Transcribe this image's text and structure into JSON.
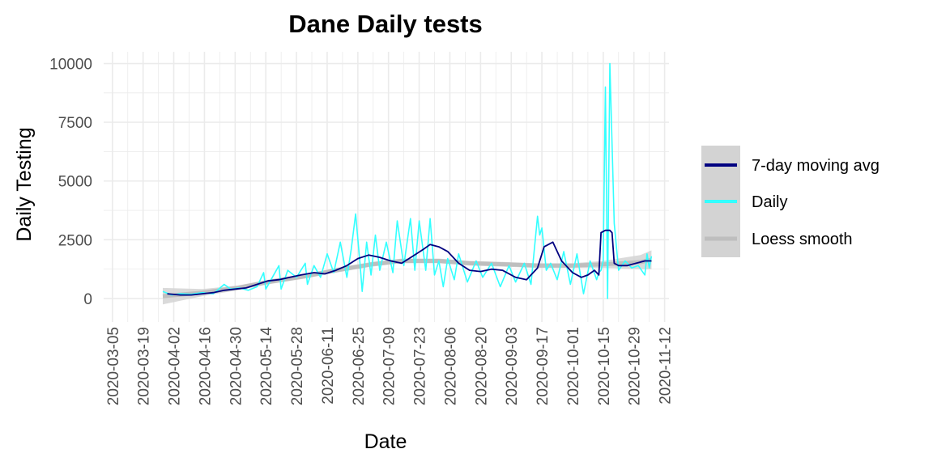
{
  "chart_data": {
    "type": "line",
    "title": "Dane Daily tests",
    "xlabel": "Date",
    "ylabel": "Daily Testing",
    "x_range": [
      "2020-03-01",
      "2020-11-14"
    ],
    "ylim": [
      -1000,
      10500
    ],
    "x_ticks": [
      "2020-03-05",
      "2020-03-19",
      "2020-04-02",
      "2020-04-16",
      "2020-04-30",
      "2020-05-14",
      "2020-05-28",
      "2020-06-11",
      "2020-06-25",
      "2020-07-09",
      "2020-07-23",
      "2020-08-06",
      "2020-08-20",
      "2020-09-03",
      "2020-09-17",
      "2020-10-01",
      "2020-10-15",
      "2020-10-29",
      "2020-11-12"
    ],
    "y_ticks": [
      0,
      2500,
      5000,
      7500,
      10000
    ],
    "y_tick_labels": [
      "0",
      "2500",
      "5000",
      "7500",
      "10000"
    ],
    "grid": true,
    "legend_position": "right",
    "legend": [
      "7-day moving avg",
      "Daily",
      "Loess smooth"
    ],
    "colors": {
      "moving_avg": "#000080",
      "daily": "#33ffff",
      "loess": "#bebebe",
      "loess_band": "#d3d3d3",
      "grid": "#ebebeb"
    },
    "series": [
      {
        "name": "Daily",
        "x": [
          "2020-03-28",
          "2020-04-01",
          "2020-04-05",
          "2020-04-10",
          "2020-04-15",
          "2020-04-20",
          "2020-04-25",
          "2020-04-28",
          "2020-05-02",
          "2020-05-06",
          "2020-05-10",
          "2020-05-13",
          "2020-05-14",
          "2020-05-17",
          "2020-05-20",
          "2020-05-21",
          "2020-05-24",
          "2020-05-28",
          "2020-06-01",
          "2020-06-02",
          "2020-06-05",
          "2020-06-08",
          "2020-06-11",
          "2020-06-14",
          "2020-06-17",
          "2020-06-20",
          "2020-06-22",
          "2020-06-24",
          "2020-06-26",
          "2020-06-27",
          "2020-06-29",
          "2020-07-01",
          "2020-07-03",
          "2020-07-05",
          "2020-07-08",
          "2020-07-11",
          "2020-07-13",
          "2020-07-16",
          "2020-07-19",
          "2020-07-21",
          "2020-07-23",
          "2020-07-26",
          "2020-07-28",
          "2020-07-30",
          "2020-08-01",
          "2020-08-03",
          "2020-08-05",
          "2020-08-08",
          "2020-08-10",
          "2020-08-14",
          "2020-08-18",
          "2020-08-21",
          "2020-08-25",
          "2020-08-29",
          "2020-09-02",
          "2020-09-05",
          "2020-09-09",
          "2020-09-12",
          "2020-09-15",
          "2020-09-16",
          "2020-09-17",
          "2020-09-19",
          "2020-09-21",
          "2020-09-24",
          "2020-09-27",
          "2020-09-30",
          "2020-10-03",
          "2020-10-06",
          "2020-10-09",
          "2020-10-12",
          "2020-10-13",
          "2020-10-14",
          "2020-10-15",
          "2020-10-16",
          "2020-10-17",
          "2020-10-18",
          "2020-10-20",
          "2020-10-22",
          "2020-10-25",
          "2020-10-28",
          "2020-10-31",
          "2020-11-03",
          "2020-11-04",
          "2020-11-05",
          "2020-11-06"
        ],
        "values": [
          300,
          150,
          200,
          180,
          250,
          200,
          600,
          400,
          450,
          350,
          500,
          1100,
          400,
          900,
          1400,
          400,
          1200,
          900,
          1500,
          600,
          1400,
          900,
          1900,
          1100,
          2400,
          900,
          2100,
          3600,
          1500,
          300,
          2400,
          1000,
          2700,
          1200,
          2400,
          1100,
          3300,
          1400,
          3400,
          1200,
          3300,
          1200,
          3400,
          1000,
          1600,
          500,
          1700,
          800,
          1900,
          700,
          1600,
          900,
          1500,
          500,
          1400,
          700,
          1500,
          600,
          3500,
          2700,
          3000,
          1200,
          1500,
          800,
          2000,
          600,
          1900,
          200,
          1600,
          800,
          1100,
          1200,
          1600,
          9000,
          0,
          10000,
          3200,
          1200,
          1600,
          1300,
          1400,
          1000,
          1900,
          1300,
          1800
        ]
      },
      {
        "name": "7-day moving avg",
        "x": [
          "2020-03-30",
          "2020-04-05",
          "2020-04-10",
          "2020-04-15",
          "2020-04-20",
          "2020-04-25",
          "2020-04-30",
          "2020-05-05",
          "2020-05-10",
          "2020-05-15",
          "2020-05-20",
          "2020-05-25",
          "2020-05-30",
          "2020-06-05",
          "2020-06-10",
          "2020-06-15",
          "2020-06-20",
          "2020-06-25",
          "2020-06-30",
          "2020-07-05",
          "2020-07-10",
          "2020-07-15",
          "2020-07-20",
          "2020-07-25",
          "2020-07-28",
          "2020-08-01",
          "2020-08-05",
          "2020-08-10",
          "2020-08-15",
          "2020-08-20",
          "2020-08-25",
          "2020-08-30",
          "2020-09-05",
          "2020-09-10",
          "2020-09-15",
          "2020-09-18",
          "2020-09-22",
          "2020-09-26",
          "2020-10-01",
          "2020-10-05",
          "2020-10-08",
          "2020-10-11",
          "2020-10-12",
          "2020-10-13",
          "2020-10-14",
          "2020-10-16",
          "2020-10-18",
          "2020-10-19",
          "2020-10-20",
          "2020-10-22",
          "2020-10-26",
          "2020-10-30",
          "2020-11-03",
          "2020-11-06"
        ],
        "values": [
          200,
          150,
          150,
          200,
          250,
          350,
          400,
          450,
          600,
          750,
          800,
          900,
          1000,
          1100,
          1050,
          1200,
          1400,
          1700,
          1850,
          1750,
          1600,
          1500,
          1800,
          2100,
          2300,
          2200,
          2000,
          1500,
          1200,
          1150,
          1250,
          1200,
          900,
          800,
          1300,
          2200,
          2400,
          1600,
          1100,
          900,
          1000,
          1200,
          1100,
          1000,
          2800,
          2900,
          2900,
          2800,
          1500,
          1400,
          1400,
          1500,
          1600,
          1600
        ]
      },
      {
        "name": "Loess smooth",
        "x": [
          "2020-03-28",
          "2020-04-15",
          "2020-05-01",
          "2020-05-15",
          "2020-06-01",
          "2020-06-15",
          "2020-07-01",
          "2020-07-15",
          "2020-08-01",
          "2020-08-15",
          "2020-09-01",
          "2020-09-15",
          "2020-10-01",
          "2020-10-15",
          "2020-11-01",
          "2020-11-06"
        ],
        "values": [
          100,
          250,
          450,
          700,
          950,
          1200,
          1450,
          1600,
          1600,
          1500,
          1450,
          1400,
          1400,
          1450,
          1550,
          1650
        ],
        "lower": [
          -250,
          100,
          350,
          600,
          850,
          1100,
          1350,
          1500,
          1500,
          1400,
          1350,
          1300,
          1300,
          1300,
          1250,
          1250
        ],
        "upper": [
          450,
          400,
          550,
          800,
          1050,
          1300,
          1550,
          1700,
          1700,
          1600,
          1550,
          1500,
          1500,
          1600,
          1850,
          2050
        ]
      }
    ]
  }
}
